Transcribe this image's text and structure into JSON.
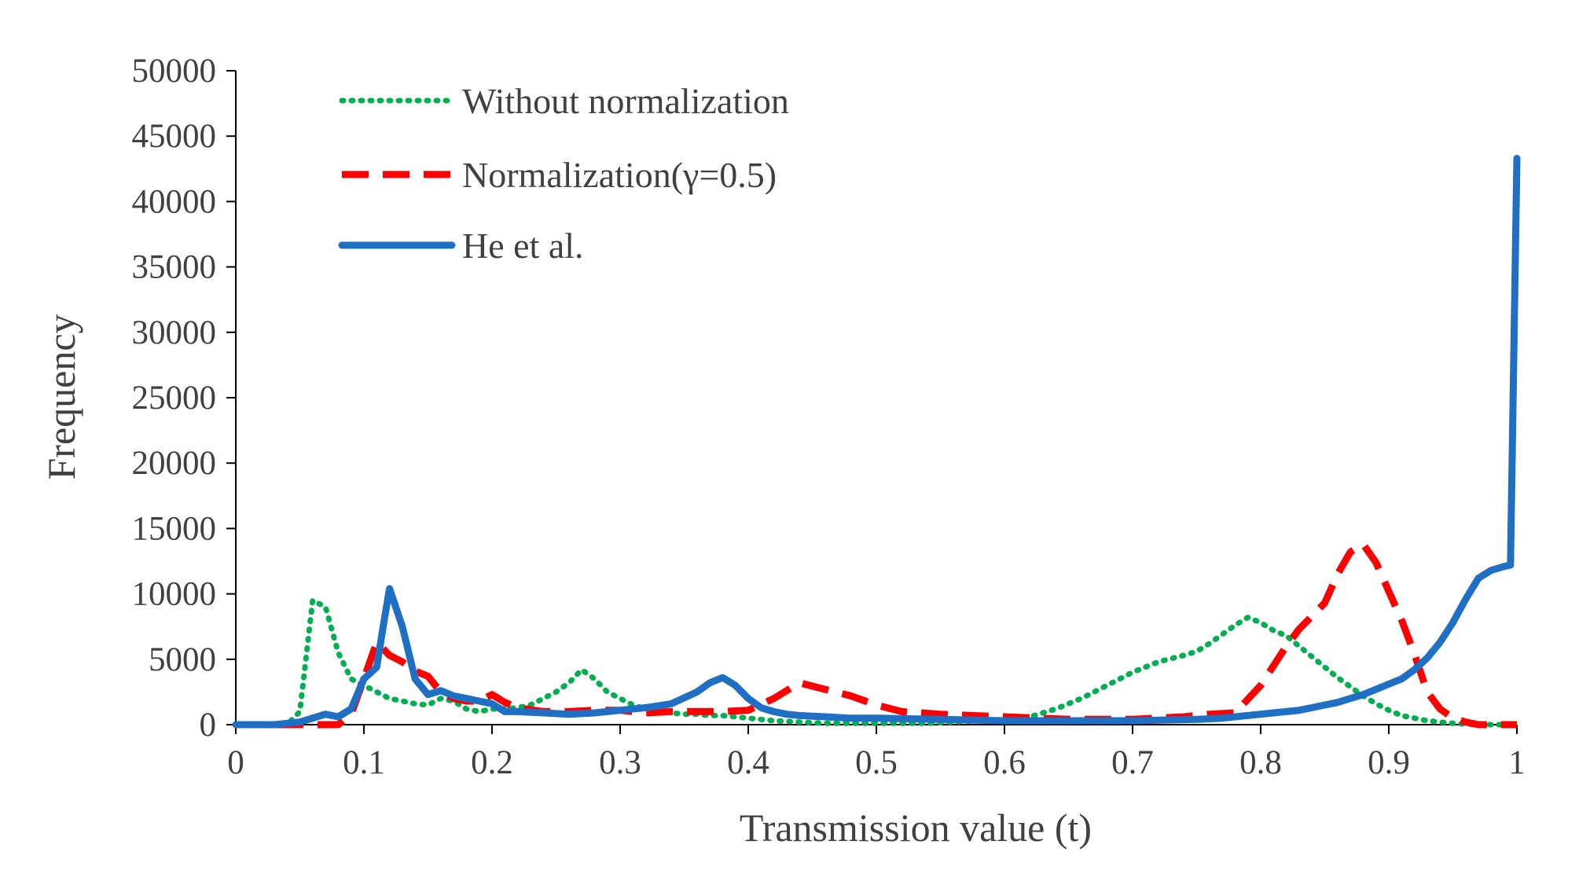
{
  "chart_data": {
    "type": "line",
    "title": "",
    "xlabel": "Transmission value (t)",
    "ylabel": "Frequency",
    "xlim": [
      0,
      1
    ],
    "ylim": [
      0,
      50000
    ],
    "xticks": [
      "0",
      "0.1",
      "0.2",
      "0.3",
      "0.4",
      "0.5",
      "0.6",
      "0.7",
      "0.8",
      "0.9",
      "1"
    ],
    "yticks": [
      "0",
      "5000",
      "10000",
      "15000",
      "20000",
      "25000",
      "30000",
      "35000",
      "40000",
      "45000",
      "50000"
    ],
    "grid": false,
    "legend_position": "top-left",
    "series": [
      {
        "name": "Without normalization",
        "style": "dotted",
        "color": "#00b050",
        "x": [
          0,
          0.02,
          0.03,
          0.04,
          0.05,
          0.06,
          0.07,
          0.08,
          0.09,
          0.1,
          0.11,
          0.12,
          0.13,
          0.14,
          0.15,
          0.16,
          0.17,
          0.18,
          0.19,
          0.2,
          0.21,
          0.22,
          0.23,
          0.24,
          0.25,
          0.26,
          0.27,
          0.28,
          0.29,
          0.3,
          0.31,
          0.32,
          0.33,
          0.34,
          0.35,
          0.36,
          0.37,
          0.38,
          0.39,
          0.4,
          0.42,
          0.44,
          0.46,
          0.48,
          0.5,
          0.52,
          0.54,
          0.56,
          0.58,
          0.6,
          0.62,
          0.64,
          0.66,
          0.68,
          0.7,
          0.72,
          0.74,
          0.75,
          0.76,
          0.77,
          0.78,
          0.79,
          0.8,
          0.81,
          0.82,
          0.83,
          0.84,
          0.85,
          0.86,
          0.87,
          0.88,
          0.89,
          0.9,
          0.91,
          0.92,
          0.93,
          0.94,
          0.95,
          0.96,
          0.97,
          0.98,
          0.99,
          1
        ],
        "values": [
          0,
          0,
          0,
          0,
          1000,
          9500,
          9000,
          5500,
          3500,
          3000,
          2500,
          2000,
          1800,
          1600,
          1500,
          2000,
          1800,
          1200,
          1000,
          1200,
          1200,
          1300,
          1500,
          2000,
          2500,
          3200,
          4200,
          3500,
          2500,
          2000,
          1500,
          1200,
          1000,
          900,
          800,
          800,
          700,
          700,
          600,
          500,
          300,
          200,
          100,
          100,
          100,
          100,
          100,
          200,
          300,
          400,
          600,
          1200,
          2000,
          3000,
          4000,
          4800,
          5300,
          5600,
          6200,
          6900,
          7600,
          8200,
          7800,
          7200,
          6800,
          6000,
          5200,
          4400,
          3600,
          2900,
          2200,
          1600,
          1100,
          700,
          500,
          300,
          200,
          100,
          50,
          0,
          0,
          0,
          0
        ]
      },
      {
        "name": "Normalization(γ=0.5)",
        "style": "dashed",
        "color": "#ff0000",
        "x": [
          0,
          0.07,
          0.08,
          0.09,
          0.1,
          0.11,
          0.12,
          0.13,
          0.14,
          0.15,
          0.16,
          0.17,
          0.18,
          0.19,
          0.2,
          0.21,
          0.22,
          0.24,
          0.26,
          0.28,
          0.3,
          0.32,
          0.34,
          0.36,
          0.38,
          0.4,
          0.42,
          0.44,
          0.46,
          0.48,
          0.5,
          0.52,
          0.55,
          0.6,
          0.65,
          0.7,
          0.74,
          0.76,
          0.78,
          0.8,
          0.81,
          0.82,
          0.83,
          0.84,
          0.85,
          0.86,
          0.87,
          0.88,
          0.89,
          0.9,
          0.91,
          0.92,
          0.93,
          0.94,
          0.95,
          0.96,
          0.97,
          0.98,
          0.99,
          1
        ],
        "values": [
          0,
          0,
          0,
          800,
          3500,
          6300,
          5300,
          4800,
          4100,
          3700,
          2500,
          2000,
          1800,
          1800,
          2300,
          1700,
          1300,
          1000,
          1000,
          1100,
          1100,
          900,
          1000,
          1000,
          1000,
          1100,
          2000,
          3200,
          2700,
          2200,
          1500,
          1000,
          800,
          600,
          400,
          400,
          600,
          800,
          900,
          3000,
          4500,
          6000,
          7300,
          8300,
          9300,
          11500,
          13200,
          13800,
          12400,
          10200,
          8000,
          5400,
          2500,
          1200,
          500,
          200,
          0,
          0,
          0,
          0
        ]
      },
      {
        "name": "He et al.",
        "style": "solid",
        "color": "#1f6fc4",
        "x": [
          0,
          0.03,
          0.05,
          0.06,
          0.07,
          0.08,
          0.09,
          0.1,
          0.11,
          0.115,
          0.12,
          0.13,
          0.14,
          0.15,
          0.16,
          0.17,
          0.18,
          0.19,
          0.2,
          0.21,
          0.22,
          0.24,
          0.26,
          0.28,
          0.3,
          0.32,
          0.34,
          0.36,
          0.37,
          0.38,
          0.39,
          0.4,
          0.41,
          0.42,
          0.43,
          0.44,
          0.46,
          0.48,
          0.5,
          0.55,
          0.6,
          0.65,
          0.7,
          0.75,
          0.77,
          0.79,
          0.81,
          0.82,
          0.83,
          0.84,
          0.85,
          0.86,
          0.87,
          0.88,
          0.89,
          0.9,
          0.91,
          0.92,
          0.93,
          0.94,
          0.95,
          0.96,
          0.97,
          0.98,
          0.99,
          0.995,
          1
        ],
        "values": [
          0,
          0,
          200,
          500,
          800,
          600,
          1200,
          3500,
          4400,
          7500,
          10400,
          7500,
          3500,
          2300,
          2600,
          2200,
          2000,
          1800,
          1600,
          1000,
          1000,
          900,
          800,
          900,
          1100,
          1300,
          1600,
          2500,
          3200,
          3600,
          3000,
          2000,
          1300,
          1000,
          800,
          700,
          600,
          500,
          500,
          400,
          300,
          300,
          300,
          400,
          500,
          700,
          900,
          1000,
          1100,
          1300,
          1500,
          1700,
          2000,
          2300,
          2700,
          3100,
          3500,
          4200,
          5100,
          6300,
          7800,
          9600,
          11200,
          11800,
          12100,
          12200,
          43300
        ]
      }
    ]
  }
}
